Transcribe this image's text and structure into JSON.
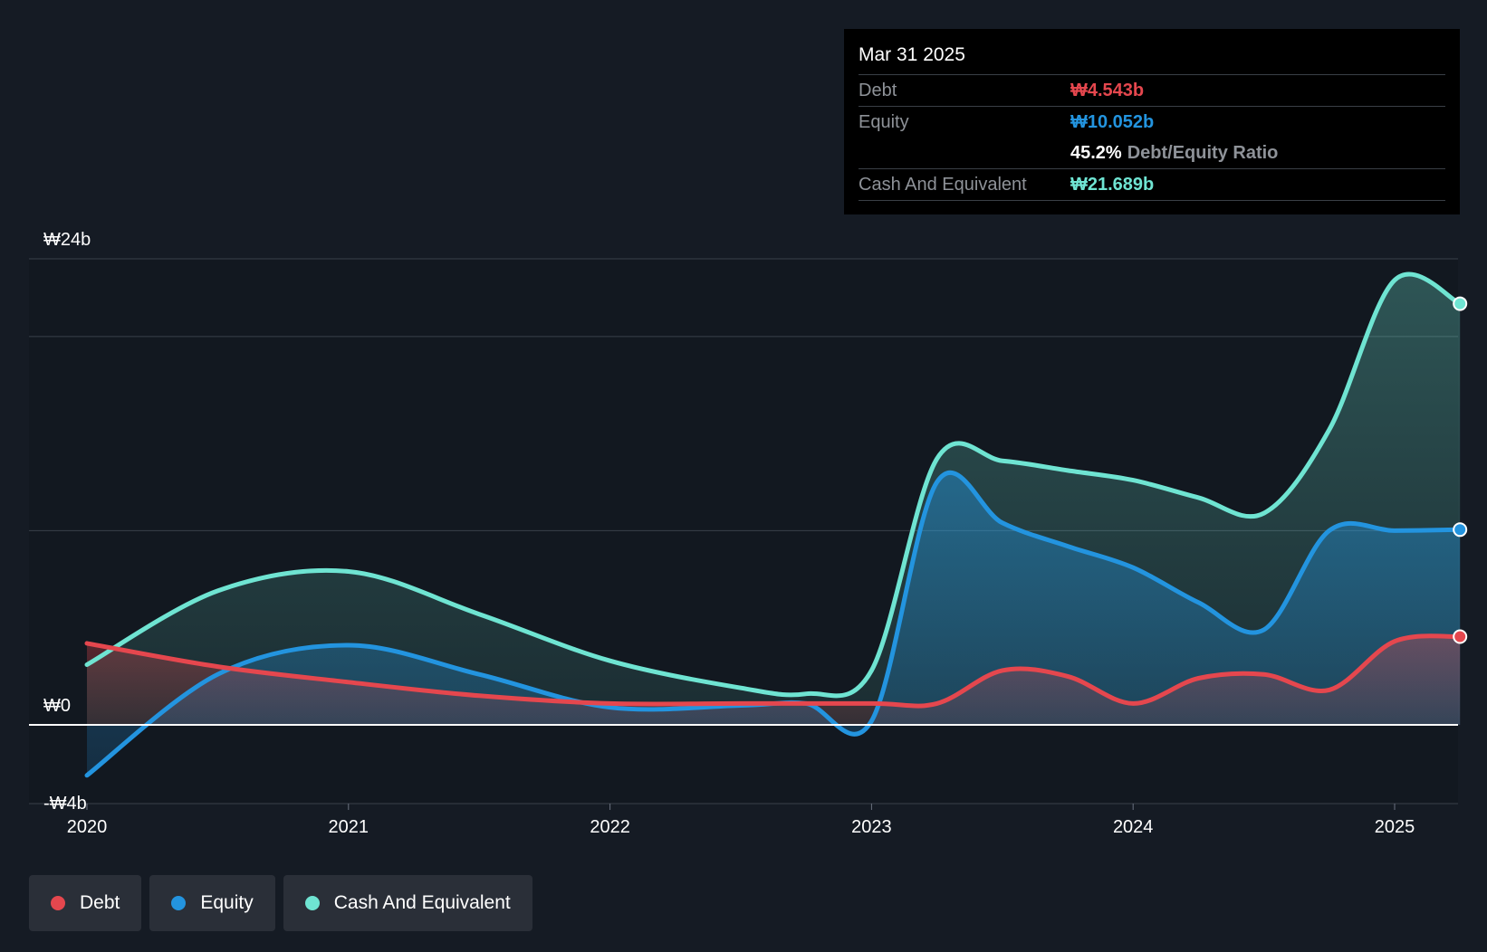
{
  "tooltip": {
    "date": "Mar 31 2025",
    "debt_label": "Debt",
    "debt_value": "₩4.543b",
    "equity_label": "Equity",
    "equity_value": "₩10.052b",
    "ratio_value": "45.2%",
    "ratio_label": "Debt/Equity Ratio",
    "cash_label": "Cash And Equivalent",
    "cash_value": "₩21.689b"
  },
  "legend": {
    "debt": "Debt",
    "equity": "Equity",
    "cash": "Cash And Equivalent"
  },
  "colors": {
    "debt": "#e5474e",
    "equity": "#2394df",
    "cash": "#6fe4d2",
    "background": "#151b24"
  },
  "chart_data": {
    "type": "area",
    "title": "",
    "xlabel": "",
    "ylabel": "",
    "ylim": [
      -4,
      24
    ],
    "y_tick_labels": [
      {
        "value": 24,
        "label": "₩24b"
      },
      {
        "value": 0,
        "label": "₩0"
      },
      {
        "value": -4,
        "label": "-₩4b"
      }
    ],
    "x_ticks": [
      2020,
      2021,
      2022,
      2023,
      2024,
      2025
    ],
    "series": [
      {
        "name": "Debt",
        "points": [
          [
            2020.0,
            4.2
          ],
          [
            2020.5,
            3.0
          ],
          [
            2021.0,
            2.2
          ],
          [
            2021.5,
            1.5
          ],
          [
            2022.0,
            1.1
          ],
          [
            2022.5,
            1.1
          ],
          [
            2023.0,
            1.1
          ],
          [
            2023.25,
            1.1
          ],
          [
            2023.5,
            2.8
          ],
          [
            2023.75,
            2.5
          ],
          [
            2024.0,
            1.1
          ],
          [
            2024.25,
            2.4
          ],
          [
            2024.5,
            2.6
          ],
          [
            2024.75,
            1.8
          ],
          [
            2025.0,
            4.3
          ],
          [
            2025.25,
            4.543
          ]
        ]
      },
      {
        "name": "Equity",
        "points": [
          [
            2020.0,
            -2.6
          ],
          [
            2020.5,
            2.6
          ],
          [
            2021.0,
            4.1
          ],
          [
            2021.5,
            2.6
          ],
          [
            2022.0,
            0.9
          ],
          [
            2022.5,
            1.0
          ],
          [
            2022.75,
            1.1
          ],
          [
            2023.0,
            0.2
          ],
          [
            2023.25,
            12.5
          ],
          [
            2023.5,
            10.4
          ],
          [
            2023.75,
            9.2
          ],
          [
            2024.0,
            8.1
          ],
          [
            2024.25,
            6.3
          ],
          [
            2024.5,
            4.9
          ],
          [
            2024.75,
            10.0
          ],
          [
            2025.0,
            10.0
          ],
          [
            2025.25,
            10.052
          ]
        ]
      },
      {
        "name": "Cash And Equivalent",
        "points": [
          [
            2020.0,
            3.1
          ],
          [
            2020.5,
            6.9
          ],
          [
            2021.0,
            7.9
          ],
          [
            2021.5,
            5.7
          ],
          [
            2022.0,
            3.3
          ],
          [
            2022.5,
            1.9
          ],
          [
            2022.75,
            1.6
          ],
          [
            2023.0,
            2.8
          ],
          [
            2023.25,
            13.7
          ],
          [
            2023.5,
            13.6
          ],
          [
            2023.75,
            13.1
          ],
          [
            2024.0,
            12.6
          ],
          [
            2024.25,
            11.7
          ],
          [
            2024.5,
            10.9
          ],
          [
            2024.75,
            15.2
          ],
          [
            2025.0,
            22.9
          ],
          [
            2025.25,
            21.689
          ]
        ]
      }
    ]
  }
}
